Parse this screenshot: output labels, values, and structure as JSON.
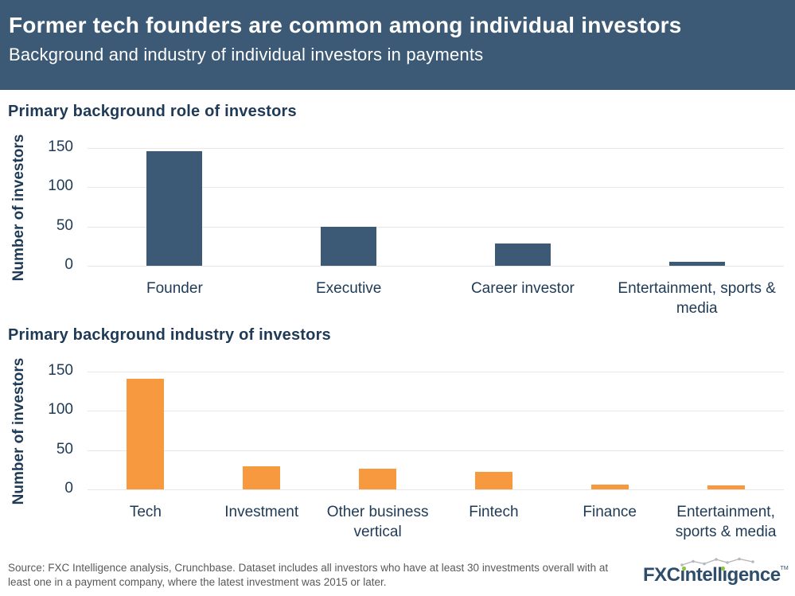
{
  "header": {
    "title": "Former tech founders are common among individual investors",
    "subtitle": "Background and industry of individual investors in payments"
  },
  "chart_data": [
    {
      "type": "bar",
      "title": "Primary background role of investors",
      "xlabel": "",
      "ylabel": "Number of investors",
      "categories": [
        "Founder",
        "Executive",
        "Career investor",
        "Entertainment, sports & media"
      ],
      "values": [
        146,
        50,
        28,
        5
      ],
      "yticks": [
        0,
        50,
        100,
        150
      ],
      "ylim": [
        0,
        150
      ],
      "grid": true,
      "legend": false,
      "bar_color": "#3C5A75"
    },
    {
      "type": "bar",
      "title": "Primary background industry of investors",
      "xlabel": "",
      "ylabel": "Number of investors",
      "categories": [
        "Tech",
        "Investment",
        "Other business vertical",
        "Fintech",
        "Finance",
        "Entertainment, sports & media"
      ],
      "values": [
        141,
        29,
        26,
        22,
        6,
        5
      ],
      "yticks": [
        0,
        50,
        100,
        150
      ],
      "ylim": [
        0,
        150
      ],
      "grid": true,
      "legend": false,
      "bar_color": "#F7993F"
    }
  ],
  "footer": {
    "source_text": "Source: FXC Intelligence analysis, Crunchbase. Dataset includes all investors who have at least 30 investments overall with at least one in a payment company, where the latest investment was 2015 or later."
  },
  "logo": {
    "brand_bold": "FXC",
    "brand_rest": "intelligence",
    "trademark": "TM"
  },
  "colors": {
    "header_bg": "#3C5A75",
    "header_text": "#FFFFFF",
    "section_title_text": "#1E3A56",
    "axis_text": "#1E3A56",
    "gridline": "#E7E7E7",
    "bar_blue": "#3C5A75",
    "bar_orange": "#F7993F",
    "footer_text": "#58595B",
    "logo_navy": "#2E4D6B",
    "logo_green": "#8CC63F",
    "logo_sparkline": "#B5B8BA"
  }
}
